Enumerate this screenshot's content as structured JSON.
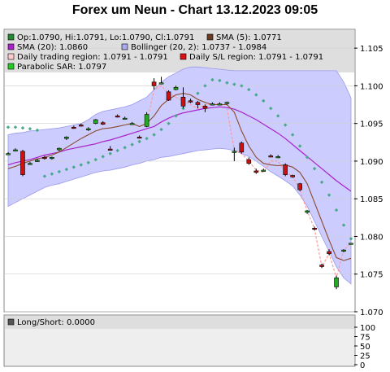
{
  "title": "Forex um Neun - Chart 13.12.2023 09:05",
  "colors": {
    "band": "#ccccff",
    "band_edge": "#9999ee",
    "sma5": "#8b4a2b",
    "sma20": "#aa22cc",
    "sar": "#44aa88",
    "daily_region": "#ff9999",
    "candle_up": "#22aa22",
    "candle_down": "#cc1111",
    "legend_bg": "#dedede",
    "panel_bg": "#eeeeee"
  },
  "legend": [
    {
      "text": "Op:1.0790, Hi:1.0791, Lo:1.0790, Cl:1.0791",
      "color": "#228833"
    },
    {
      "text": "SMA (5): 1.0771",
      "color": "#6b3a20"
    },
    {
      "text": "SMA (20): 1.0860",
      "color": "#aa22cc"
    },
    {
      "text": "Bollinger (20, 2): 1.0737 - 1.0984",
      "color": "#aaaaee"
    },
    {
      "text": "Daily trading region: 1.0791 - 1.0791",
      "color": "#ffcccc"
    },
    {
      "text": "Daily S/L region: 1.0791 - 1.0791",
      "color": "#dd1111"
    },
    {
      "text": "Parabolic SAR: 1.0797",
      "color": "#22cc22"
    }
  ],
  "lower_panel": {
    "legend": {
      "text": "Long/Short: 0.0000",
      "color": "#555555"
    },
    "y_ticks": [
      "100",
      "75",
      "50",
      "25",
      "0"
    ]
  },
  "chart_data": {
    "type": "candlestick",
    "ylim": [
      1.07,
      1.1075
    ],
    "y_ticks": [
      "1.105",
      "1.100",
      "1.095",
      "1.090",
      "1.085",
      "1.080",
      "1.075",
      "1.070"
    ],
    "candles": [
      {
        "o": 1.091,
        "h": 1.0912,
        "l": 1.0908,
        "c": 1.091
      },
      {
        "o": 1.0915,
        "h": 1.0917,
        "l": 1.0913,
        "c": 1.0915
      },
      {
        "o": 1.0913,
        "h": 1.0915,
        "l": 1.088,
        "c": 1.0882
      },
      {
        "o": 1.0897,
        "h": 1.0899,
        "l": 1.0895,
        "c": 1.0897
      },
      {
        "o": 1.0901,
        "h": 1.0903,
        "l": 1.0899,
        "c": 1.0901
      },
      {
        "o": 1.0905,
        "h": 1.0907,
        "l": 1.0902,
        "c": 1.0904
      },
      {
        "o": 1.0904,
        "h": 1.0906,
        "l": 1.0902,
        "c": 1.0905
      },
      {
        "o": 1.0915,
        "h": 1.0918,
        "l": 1.0913,
        "c": 1.0917
      },
      {
        "o": 1.093,
        "h": 1.0933,
        "l": 1.0928,
        "c": 1.0932
      },
      {
        "o": 1.0945,
        "h": 1.0947,
        "l": 1.0943,
        "c": 1.0944
      },
      {
        "o": 1.0948,
        "h": 1.095,
        "l": 1.0946,
        "c": 1.0947
      },
      {
        "o": 1.0942,
        "h": 1.0945,
        "l": 1.094,
        "c": 1.0943
      },
      {
        "o": 1.095,
        "h": 1.0956,
        "l": 1.0949,
        "c": 1.0955
      },
      {
        "o": 1.0951,
        "h": 1.0953,
        "l": 1.0948,
        "c": 1.0949
      },
      {
        "o": 1.0916,
        "h": 1.092,
        "l": 1.0914,
        "c": 1.0915
      },
      {
        "o": 1.096,
        "h": 1.0962,
        "l": 1.0958,
        "c": 1.0959
      },
      {
        "o": 1.0957,
        "h": 1.0959,
        "l": 1.0955,
        "c": 1.0957
      },
      {
        "o": 1.095,
        "h": 1.0952,
        "l": 1.0948,
        "c": 1.095
      },
      {
        "o": 1.0932,
        "h": 1.0934,
        "l": 1.093,
        "c": 1.0931
      },
      {
        "o": 1.0946,
        "h": 1.0965,
        "l": 1.0945,
        "c": 1.0962
      },
      {
        "o": 1.1005,
        "h": 1.101,
        "l": 1.0995,
        "c": 1.1
      },
      {
        "o": 1.1003,
        "h": 1.1012,
        "l": 1.1002,
        "c": 1.1004
      },
      {
        "o": 1.0992,
        "h": 1.0994,
        "l": 1.098,
        "c": 1.0981
      },
      {
        "o": 1.0995,
        "h": 1.1,
        "l": 1.0994,
        "c": 1.0998
      },
      {
        "o": 1.0985,
        "h": 1.0998,
        "l": 1.097,
        "c": 1.0973
      },
      {
        "o": 1.098,
        "h": 1.0983,
        "l": 1.0977,
        "c": 1.0979
      },
      {
        "o": 1.0978,
        "h": 1.098,
        "l": 1.097,
        "c": 1.0975
      },
      {
        "o": 1.0973,
        "h": 1.0975,
        "l": 1.0965,
        "c": 1.097
      },
      {
        "o": 1.0975,
        "h": 1.0978,
        "l": 1.0974,
        "c": 1.0976
      },
      {
        "o": 1.0976,
        "h": 1.0978,
        "l": 1.0974,
        "c": 1.0976
      },
      {
        "o": 1.0977,
        "h": 1.0979,
        "l": 1.0975,
        "c": 1.0978
      },
      {
        "o": 1.0913,
        "h": 1.0918,
        "l": 1.09,
        "c": 1.0913
      },
      {
        "o": 1.0924,
        "h": 1.0926,
        "l": 1.091,
        "c": 1.0912
      },
      {
        "o": 1.0902,
        "h": 1.0905,
        "l": 1.0895,
        "c": 1.0897
      },
      {
        "o": 1.0887,
        "h": 1.089,
        "l": 1.0883,
        "c": 1.0885
      },
      {
        "o": 1.0888,
        "h": 1.089,
        "l": 1.0886,
        "c": 1.0888
      },
      {
        "o": 1.0907,
        "h": 1.0909,
        "l": 1.0905,
        "c": 1.0906
      },
      {
        "o": 1.0906,
        "h": 1.0908,
        "l": 1.0904,
        "c": 1.0906
      },
      {
        "o": 1.0895,
        "h": 1.0897,
        "l": 1.088,
        "c": 1.0882
      },
      {
        "o": 1.0881,
        "h": 1.0882,
        "l": 1.0878,
        "c": 1.0879
      },
      {
        "o": 1.087,
        "h": 1.0871,
        "l": 1.086,
        "c": 1.0862
      },
      {
        "o": 1.0832,
        "h": 1.0835,
        "l": 1.083,
        "c": 1.0834
      },
      {
        "o": 1.0811,
        "h": 1.0813,
        "l": 1.0808,
        "c": 1.081
      },
      {
        "o": 1.0762,
        "h": 1.0764,
        "l": 1.0758,
        "c": 1.076
      },
      {
        "o": 1.078,
        "h": 1.0783,
        "l": 1.0775,
        "c": 1.0777
      },
      {
        "o": 1.0733,
        "h": 1.0748,
        "l": 1.073,
        "c": 1.0745
      },
      {
        "o": 1.0781,
        "h": 1.0783,
        "l": 1.0779,
        "c": 1.0782
      },
      {
        "o": 1.079,
        "h": 1.0791,
        "l": 1.079,
        "c": 1.0791
      }
    ],
    "sma5": [
      1.089,
      1.0893,
      1.0897,
      1.09,
      1.0903,
      1.0905,
      1.0908,
      1.0912,
      1.0918,
      1.0924,
      1.093,
      1.0935,
      1.094,
      1.0943,
      1.0944,
      1.0946,
      1.0948,
      1.095,
      1.0946,
      1.095,
      1.096,
      1.0974,
      1.0982,
      1.0988,
      1.099,
      1.0988,
      1.0982,
      1.0978,
      1.0975,
      1.0975,
      1.0975,
      1.0965,
      1.094,
      1.092,
      1.0905,
      1.0897,
      1.0895,
      1.0894,
      1.0895,
      1.0892,
      1.0885,
      1.087,
      1.0845,
      1.082,
      1.0795,
      1.0772,
      1.0768,
      1.0771
    ],
    "sma20": [
      1.0895,
      1.0898,
      1.09,
      1.0902,
      1.0905,
      1.0908,
      1.091,
      1.0912,
      1.0915,
      1.0917,
      1.0919,
      1.0921,
      1.0923,
      1.0926,
      1.0928,
      1.0931,
      1.0934,
      1.0937,
      1.094,
      1.0943,
      1.0946,
      1.0952,
      1.0957,
      1.0961,
      1.0964,
      1.0966,
      1.0968,
      1.097,
      1.0971,
      1.0972,
      1.0971,
      1.0969,
      1.0965,
      1.096,
      1.0955,
      1.0949,
      1.0943,
      1.0937,
      1.093,
      1.0922,
      1.0914,
      1.0906,
      1.0898,
      1.089,
      1.0882,
      1.0874,
      1.0867,
      1.086
    ],
    "bollinger_upper": [
      1.0935,
      1.0937,
      1.0938,
      1.094,
      1.0941,
      1.0942,
      1.0943,
      1.0944,
      1.0946,
      1.0948,
      1.095,
      1.0955,
      1.0962,
      1.0966,
      1.0968,
      1.097,
      1.0972,
      1.0975,
      1.098,
      1.0985,
      1.0995,
      1.1005,
      1.1012,
      1.1017,
      1.1022,
      1.1025,
      1.1025,
      1.1024,
      1.1023,
      1.1022,
      1.1021,
      1.102,
      1.102,
      1.102,
      1.102,
      1.102,
      1.102,
      1.102,
      1.102,
      1.102,
      1.102,
      1.102,
      1.102,
      1.102,
      1.102,
      1.102,
      1.1005,
      1.0984
    ],
    "bollinger_lower": [
      1.084,
      1.0845,
      1.085,
      1.0855,
      1.086,
      1.0865,
      1.0868,
      1.087,
      1.0873,
      1.0876,
      1.0879,
      1.0882,
      1.0885,
      1.0887,
      1.0888,
      1.089,
      1.0892,
      1.0895,
      1.0897,
      1.09,
      1.0902,
      1.0905,
      1.0906,
      1.0908,
      1.091,
      1.0912,
      1.0914,
      1.0915,
      1.0916,
      1.0917,
      1.0916,
      1.0914,
      1.091,
      1.0906,
      1.09,
      1.0893,
      1.0886,
      1.088,
      1.0874,
      1.0867,
      1.0855,
      1.084,
      1.082,
      1.08,
      1.078,
      1.076,
      1.0745,
      1.0737
    ],
    "sar": [
      1.0945,
      1.0945,
      1.0944,
      1.0943,
      1.0941,
      1.088,
      1.0883,
      1.0886,
      1.0889,
      1.0892,
      1.0895,
      1.0898,
      1.0902,
      1.0906,
      1.091,
      1.0914,
      1.0918,
      1.0922,
      1.0926,
      1.093,
      1.0935,
      1.0942,
      1.095,
      1.096,
      1.097,
      1.098,
      1.099,
      1.1,
      1.1008,
      1.1007,
      1.1004,
      1.1002,
      1.1,
      1.0995,
      1.0988,
      1.098,
      1.097,
      1.096,
      1.0948,
      1.0935,
      1.092,
      1.0905,
      1.089,
      1.0872,
      1.0855,
      1.0835,
      1.0815,
      1.0797
    ],
    "daily_region": [
      null,
      null,
      null,
      null,
      null,
      null,
      null,
      null,
      null,
      null,
      null,
      null,
      null,
      null,
      null,
      null,
      null,
      null,
      null,
      1.095,
      1.0995,
      1.1,
      1.099,
      1.0985,
      1.098,
      1.0975,
      1.097,
      1.0975,
      1.0975,
      1.0976,
      1.097,
      1.0915,
      1.091,
      1.09,
      1.0888,
      1.0885,
      1.09,
      1.09,
      1.0885,
      1.088,
      1.0862,
      1.0834,
      1.081,
      1.076,
      1.0777,
      1.0745,
      1.0782,
      1.0791
    ]
  }
}
